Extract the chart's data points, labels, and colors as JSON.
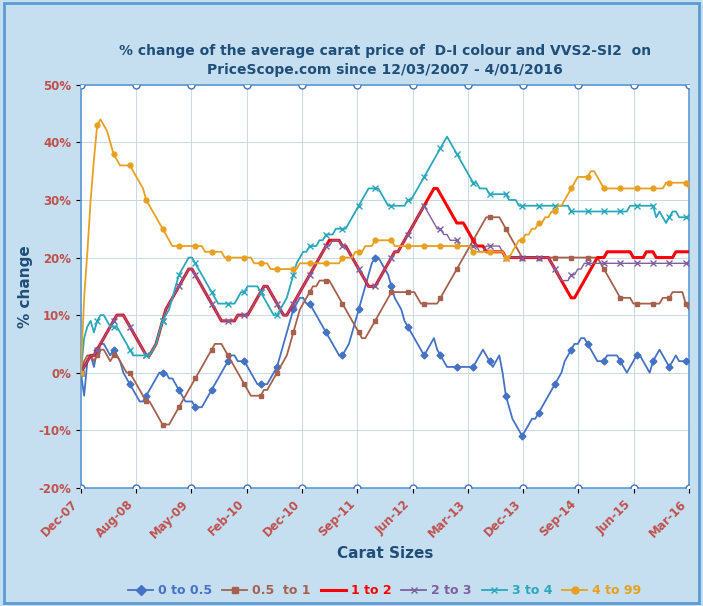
{
  "title": "% change of the average carat price of  D-I colour and VVS2-SI2  on\nPriceScope.com since 12/03/2007 - 4/01/2016",
  "xlabel": "Carat Sizes",
  "ylabel": "% change",
  "ylim": [
    -20,
    50
  ],
  "yticks": [
    -20,
    -10,
    0,
    10,
    20,
    30,
    40,
    50
  ],
  "ytick_labels": [
    "-20%",
    "-10%",
    "0%",
    "10%",
    "20%",
    "30%",
    "40%",
    "50%"
  ],
  "background_color": "#ffffff",
  "outer_bg": "#c5dff0",
  "x_tick_labels": [
    "Dec-07",
    "Aug-08",
    "May-09",
    "Feb-10",
    "Dec-10",
    "Sep-11",
    "Jun-12",
    "Mar-13",
    "Dec-13",
    "Sep-14",
    "Jun-15",
    "Mar-16"
  ],
  "series": {
    "0 to 0.5": {
      "color": "#4472c4",
      "marker": "D",
      "linewidth": 1.3,
      "markersize": 3.5,
      "values": [
        0,
        -4,
        2,
        3,
        1,
        4,
        5,
        5,
        4,
        3,
        4,
        3,
        2,
        0,
        -1,
        -2,
        -3,
        -4,
        -5,
        -5,
        -4,
        -3,
        -2,
        -1,
        0,
        0,
        0,
        -1,
        -1,
        -2,
        -3,
        -4,
        -5,
        -5,
        -5,
        -6,
        -6,
        -6,
        -5,
        -4,
        -3,
        -2,
        -1,
        0,
        1,
        2,
        3,
        3,
        2,
        2,
        2,
        1,
        0,
        -1,
        -2,
        -2,
        -2,
        -2,
        -1,
        0,
        1,
        3,
        5,
        7,
        9,
        11,
        12,
        13,
        13,
        12,
        12,
        11,
        10,
        9,
        8,
        7,
        6,
        5,
        4,
        3,
        3,
        4,
        5,
        7,
        9,
        11,
        13,
        15,
        17,
        19,
        20,
        20,
        19,
        18,
        17,
        15,
        13,
        12,
        11,
        9,
        8,
        7,
        6,
        5,
        4,
        3,
        4,
        5,
        6,
        4,
        3,
        2,
        1,
        1,
        1,
        1,
        1,
        1,
        1,
        1,
        1,
        2,
        3,
        4,
        3,
        2,
        1,
        2,
        3,
        0,
        -4,
        -6,
        -8,
        -9,
        -10,
        -11,
        -10,
        -9,
        -8,
        -8,
        -7,
        -6,
        -5,
        -4,
        -3,
        -2,
        -1,
        0,
        2,
        3,
        4,
        5,
        5,
        6,
        6,
        5,
        4,
        3,
        2,
        2,
        2,
        3,
        3,
        3,
        3,
        2,
        1,
        0,
        1,
        2,
        3,
        3,
        2,
        1,
        0,
        2,
        3,
        4,
        3,
        2,
        1,
        2,
        3,
        2,
        2,
        2,
        2
      ]
    },
    "0.5 to 1": {
      "color": "#a5614e",
      "marker": "s",
      "linewidth": 1.3,
      "markersize": 3.5,
      "values": [
        0,
        2,
        3,
        3,
        2,
        3,
        4,
        4,
        3,
        2,
        3,
        3,
        2,
        1,
        0,
        0,
        -1,
        -2,
        -3,
        -4,
        -5,
        -5,
        -6,
        -7,
        -8,
        -9,
        -9,
        -9,
        -8,
        -7,
        -6,
        -5,
        -4,
        -3,
        -2,
        -1,
        0,
        1,
        2,
        3,
        4,
        5,
        5,
        5,
        4,
        3,
        2,
        1,
        0,
        -1,
        -2,
        -3,
        -4,
        -4,
        -4,
        -4,
        -3,
        -3,
        -2,
        -1,
        0,
        1,
        2,
        3,
        5,
        7,
        9,
        11,
        12,
        13,
        14,
        15,
        15,
        16,
        16,
        16,
        16,
        15,
        14,
        13,
        12,
        11,
        10,
        9,
        8,
        7,
        6,
        6,
        7,
        8,
        9,
        10,
        11,
        12,
        13,
        14,
        14,
        14,
        14,
        14,
        14,
        14,
        14,
        13,
        12,
        12,
        12,
        12,
        12,
        12,
        13,
        14,
        15,
        16,
        17,
        18,
        19,
        20,
        21,
        22,
        23,
        24,
        25,
        26,
        27,
        27,
        27,
        27,
        27,
        26,
        25,
        24,
        23,
        22,
        21,
        20,
        20,
        20,
        20,
        20,
        20,
        20,
        20,
        20,
        20,
        20,
        20,
        20,
        20,
        20,
        20,
        20,
        20,
        20,
        20,
        20,
        20,
        20,
        20,
        19,
        18,
        17,
        16,
        15,
        14,
        13,
        13,
        13,
        13,
        12,
        12,
        12,
        12,
        12,
        12,
        12,
        12,
        12,
        13,
        13,
        13,
        14,
        14,
        14,
        14,
        12,
        11
      ]
    },
    "1 to 2": {
      "color": "#ff0000",
      "marker": "None",
      "linewidth": 2.2,
      "markersize": 0,
      "values": [
        0,
        1,
        2,
        3,
        3,
        4,
        5,
        6,
        7,
        8,
        9,
        10,
        10,
        10,
        9,
        8,
        7,
        6,
        5,
        4,
        3,
        3,
        4,
        5,
        7,
        9,
        11,
        12,
        13,
        14,
        15,
        16,
        17,
        18,
        18,
        17,
        16,
        15,
        14,
        13,
        12,
        11,
        10,
        9,
        9,
        9,
        9,
        9,
        10,
        10,
        10,
        10,
        11,
        12,
        13,
        14,
        15,
        15,
        14,
        13,
        12,
        11,
        10,
        10,
        11,
        12,
        13,
        14,
        15,
        16,
        17,
        18,
        19,
        20,
        21,
        22,
        23,
        23,
        23,
        23,
        22,
        22,
        21,
        20,
        19,
        18,
        17,
        16,
        15,
        15,
        15,
        16,
        17,
        18,
        19,
        20,
        21,
        21,
        22,
        23,
        24,
        25,
        26,
        27,
        28,
        29,
        30,
        31,
        32,
        32,
        31,
        30,
        29,
        28,
        27,
        26,
        26,
        26,
        25,
        24,
        23,
        22,
        22,
        22,
        21,
        21,
        21,
        21,
        21,
        21,
        20,
        20,
        20,
        20,
        20,
        20,
        20,
        20,
        20,
        20,
        20,
        20,
        20,
        20,
        19,
        18,
        17,
        16,
        15,
        14,
        13,
        13,
        14,
        15,
        16,
        17,
        18,
        19,
        20,
        20,
        20,
        21,
        21,
        21,
        21,
        21,
        21,
        21,
        21,
        20,
        20,
        20,
        20,
        21,
        21,
        21,
        20,
        20,
        20,
        20,
        20,
        20,
        21,
        21,
        21,
        21,
        21
      ]
    },
    "2 to 3": {
      "color": "#7f5fa0",
      "marker": "x",
      "linewidth": 1.0,
      "markersize": 4,
      "values": [
        0,
        1,
        2,
        3,
        3,
        4,
        5,
        6,
        7,
        8,
        9,
        10,
        10,
        10,
        9,
        8,
        7,
        6,
        5,
        4,
        3,
        3,
        4,
        5,
        7,
        9,
        11,
        12,
        13,
        14,
        15,
        16,
        17,
        18,
        18,
        17,
        16,
        15,
        14,
        13,
        12,
        11,
        10,
        9,
        9,
        9,
        9,
        9,
        10,
        10,
        10,
        10,
        11,
        12,
        13,
        14,
        15,
        15,
        14,
        13,
        12,
        11,
        10,
        10,
        11,
        12,
        13,
        14,
        15,
        16,
        17,
        18,
        19,
        20,
        21,
        22,
        22,
        23,
        23,
        23,
        22,
        22,
        21,
        20,
        19,
        18,
        17,
        16,
        15,
        15,
        15,
        16,
        17,
        18,
        19,
        20,
        21,
        21,
        22,
        23,
        24,
        25,
        26,
        27,
        28,
        29,
        28,
        27,
        26,
        25,
        25,
        24,
        24,
        23,
        23,
        23,
        22,
        22,
        22,
        22,
        22,
        22,
        21,
        21,
        22,
        22,
        22,
        22,
        22,
        21,
        20,
        20,
        20,
        20,
        20,
        20,
        20,
        20,
        20,
        20,
        20,
        20,
        20,
        20,
        19,
        18,
        17,
        16,
        16,
        16,
        17,
        17,
        18,
        18,
        19,
        19,
        19,
        19,
        19,
        19,
        19,
        19,
        19,
        19,
        19,
        19,
        19,
        19,
        19,
        19,
        19,
        19,
        19,
        19,
        19,
        19,
        19,
        19,
        19,
        19,
        19,
        19,
        19,
        19,
        19,
        19,
        19
      ]
    },
    "3 to 4": {
      "color": "#29a8bb",
      "marker": "x",
      "linewidth": 1.3,
      "markersize": 4,
      "values": [
        0,
        6,
        8,
        9,
        7,
        9,
        10,
        10,
        9,
        8,
        8,
        8,
        7,
        6,
        5,
        4,
        3,
        3,
        3,
        3,
        3,
        3,
        4,
        5,
        7,
        9,
        10,
        11,
        13,
        15,
        17,
        18,
        19,
        20,
        20,
        19,
        18,
        17,
        16,
        15,
        14,
        13,
        12,
        12,
        12,
        12,
        12,
        12,
        13,
        14,
        14,
        15,
        15,
        15,
        15,
        14,
        13,
        12,
        11,
        10,
        10,
        11,
        12,
        13,
        15,
        17,
        19,
        20,
        21,
        21,
        22,
        22,
        22,
        23,
        23,
        24,
        24,
        24,
        25,
        25,
        25,
        25,
        26,
        27,
        28,
        29,
        30,
        31,
        32,
        32,
        32,
        32,
        31,
        30,
        29,
        29,
        29,
        29,
        29,
        29,
        30,
        30,
        31,
        32,
        33,
        34,
        35,
        36,
        37,
        38,
        39,
        40,
        41,
        40,
        39,
        38,
        37,
        36,
        35,
        34,
        33,
        33,
        32,
        32,
        32,
        31,
        31,
        31,
        31,
        31,
        31,
        30,
        30,
        30,
        29,
        29,
        29,
        29,
        29,
        29,
        29,
        29,
        29,
        29,
        29,
        29,
        29,
        29,
        29,
        29,
        28,
        28,
        28,
        28,
        28,
        28,
        28,
        28,
        28,
        28,
        28,
        28,
        28,
        28,
        28,
        28,
        28,
        28,
        29,
        29,
        29,
        29,
        29,
        29,
        29,
        29,
        27,
        28,
        27,
        26,
        27,
        28,
        28,
        27,
        27,
        27,
        27
      ]
    },
    "4 to 99": {
      "color": "#e8a020",
      "marker": "o",
      "linewidth": 1.3,
      "markersize": 3.5,
      "values": [
        0,
        13,
        21,
        30,
        37,
        43,
        44,
        43,
        42,
        40,
        38,
        37,
        36,
        36,
        36,
        36,
        35,
        34,
        33,
        32,
        30,
        29,
        28,
        27,
        26,
        25,
        24,
        23,
        22,
        22,
        22,
        22,
        22,
        22,
        22,
        22,
        22,
        22,
        21,
        21,
        21,
        21,
        21,
        21,
        20,
        20,
        20,
        20,
        20,
        20,
        20,
        20,
        20,
        19,
        19,
        19,
        19,
        19,
        18,
        18,
        18,
        18,
        18,
        18,
        18,
        18,
        18,
        19,
        19,
        19,
        19,
        19,
        19,
        19,
        19,
        19,
        19,
        19,
        19,
        19,
        20,
        20,
        20,
        20,
        21,
        21,
        21,
        22,
        22,
        22,
        23,
        23,
        23,
        23,
        23,
        23,
        22,
        22,
        22,
        22,
        22,
        22,
        22,
        22,
        22,
        22,
        22,
        22,
        22,
        22,
        22,
        22,
        22,
        22,
        22,
        22,
        22,
        22,
        22,
        22,
        21,
        21,
        21,
        21,
        21,
        21,
        21,
        21,
        21,
        21,
        20,
        20,
        21,
        22,
        23,
        23,
        24,
        24,
        25,
        25,
        26,
        26,
        27,
        27,
        28,
        28,
        29,
        29,
        30,
        31,
        32,
        33,
        34,
        34,
        34,
        34,
        35,
        35,
        34,
        33,
        32,
        32,
        32,
        32,
        32,
        32,
        32,
        32,
        32,
        32,
        32,
        32,
        32,
        32,
        32,
        32,
        32,
        32,
        32,
        33,
        33,
        33,
        33,
        33,
        33,
        33,
        32
      ]
    }
  },
  "legend_labels": [
    "0 to 0.5",
    "0.5  to 1",
    "1 to 2",
    "2 to 3",
    "3 to 4",
    "4 to 99"
  ],
  "legend_colors": [
    "#4472c4",
    "#a5614e",
    "#ff0000",
    "#7f5fa0",
    "#29a8bb",
    "#e8a020"
  ],
  "legend_markers": [
    "D",
    "s",
    "None",
    "x",
    "x",
    "o"
  ],
  "n_points": 187
}
